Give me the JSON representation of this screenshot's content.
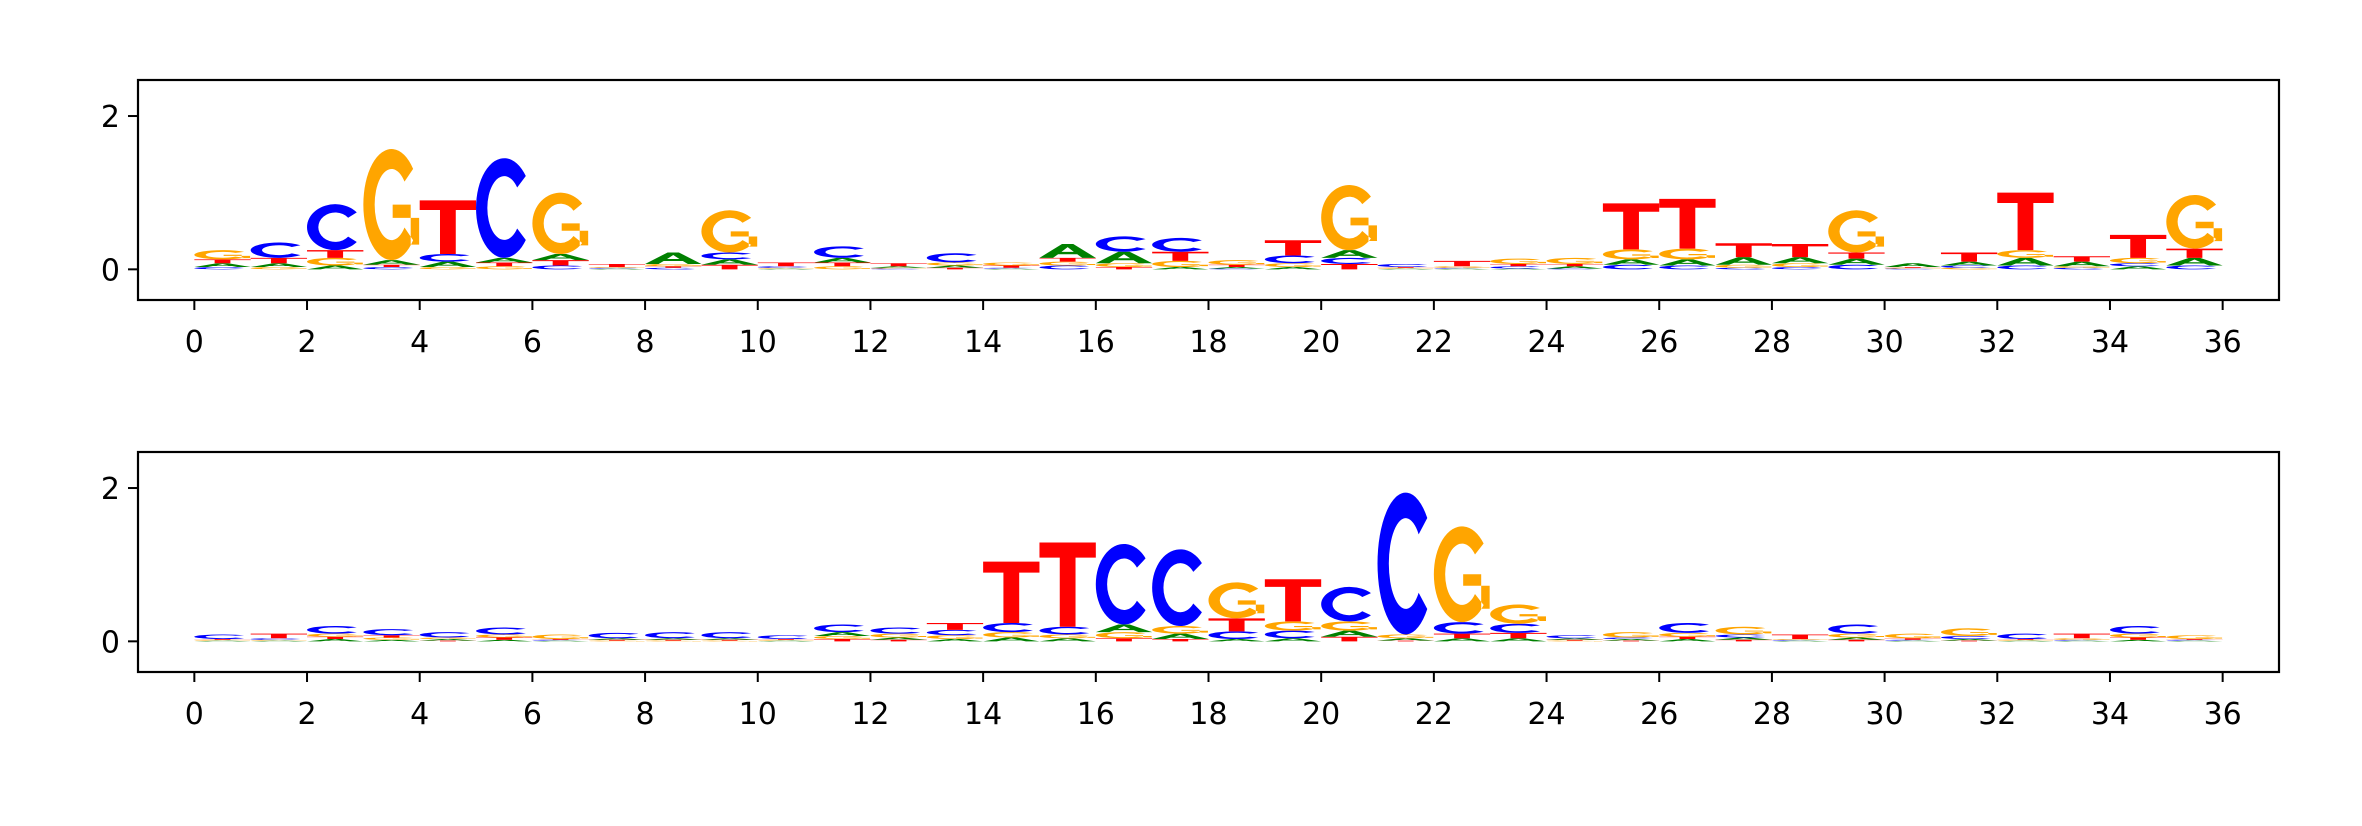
{
  "colors": {
    "A": "#008000",
    "C": "#0000ff",
    "G": "#ffa500",
    "T": "#ff0000"
  },
  "chart_data": [
    {
      "type": "sequence-logo",
      "alphabet": [
        "A",
        "C",
        "G",
        "T"
      ],
      "xlim": [
        -1,
        37
      ],
      "ylim": [
        -0.4,
        2.47
      ],
      "xticks": [
        0,
        2,
        4,
        6,
        8,
        10,
        12,
        14,
        16,
        18,
        20,
        22,
        24,
        26,
        28,
        30,
        32,
        34,
        36
      ],
      "yticks": [
        0,
        2
      ],
      "xlabel": "",
      "ylabel": "",
      "columns": [
        [
          0.05,
          0.03,
          0.12,
          0.05
        ],
        [
          0.05,
          0.2,
          0.03,
          0.07
        ],
        [
          0.05,
          0.6,
          0.1,
          0.1
        ],
        [
          0.06,
          0.03,
          1.45,
          0.03
        ],
        [
          0.07,
          0.1,
          0.03,
          0.7
        ],
        [
          0.06,
          1.3,
          0.04,
          0.05
        ],
        [
          0.08,
          0.05,
          0.8,
          0.07
        ],
        [
          0.01,
          0.01,
          0.01,
          0.04
        ],
        [
          0.15,
          0.02,
          0.03,
          0.02
        ],
        [
          0.07,
          0.09,
          0.55,
          0.06
        ],
        [
          0.01,
          0.02,
          0.01,
          0.05
        ],
        [
          0.06,
          0.15,
          0.04,
          0.05
        ],
        [
          0.02,
          0.01,
          0.01,
          0.04
        ],
        [
          0.03,
          0.12,
          0.04,
          0.02
        ],
        [
          0.01,
          0.01,
          0.04,
          0.03
        ],
        [
          0.18,
          0.05,
          0.05,
          0.05
        ],
        [
          0.15,
          0.2,
          0.05,
          0.03
        ],
        [
          0.03,
          0.18,
          0.08,
          0.12
        ],
        [
          0.02,
          0.01,
          0.06,
          0.03
        ],
        [
          0.03,
          0.1,
          0.05,
          0.2
        ],
        [
          0.1,
          0.08,
          0.85,
          0.07
        ],
        [
          0.01,
          0.04,
          0.01,
          0.01
        ],
        [
          0.01,
          0.01,
          0.02,
          0.07
        ],
        [
          0.01,
          0.03,
          0.07,
          0.03
        ],
        [
          0.03,
          0.01,
          0.08,
          0.03
        ],
        [
          0.07,
          0.06,
          0.13,
          0.6
        ],
        [
          0.08,
          0.05,
          0.14,
          0.65
        ],
        [
          0.1,
          0.02,
          0.04,
          0.18
        ],
        [
          0.08,
          0.03,
          0.05,
          0.17
        ],
        [
          0.08,
          0.06,
          0.55,
          0.08
        ],
        [
          0.05,
          0.01,
          0.01,
          0.01
        ],
        [
          0.05,
          0.03,
          0.02,
          0.12
        ],
        [
          0.1,
          0.05,
          0.1,
          0.75
        ],
        [
          0.06,
          0.02,
          0.02,
          0.07
        ],
        [
          0.04,
          0.04,
          0.07,
          0.3
        ],
        [
          0.1,
          0.05,
          0.7,
          0.12
        ]
      ]
    },
    {
      "type": "sequence-logo",
      "alphabet": [
        "A",
        "C",
        "G",
        "T"
      ],
      "xlim": [
        -1,
        37
      ],
      "ylim": [
        -0.4,
        2.47
      ],
      "xticks": [
        0,
        2,
        4,
        6,
        8,
        10,
        12,
        14,
        16,
        18,
        20,
        22,
        24,
        26,
        28,
        30,
        32,
        34,
        36
      ],
      "yticks": [
        0,
        2
      ],
      "xlabel": "",
      "ylabel": "",
      "columns": [
        [
          0.01,
          0.06,
          0.01,
          0.01
        ],
        [
          0.01,
          0.02,
          0.01,
          0.06
        ],
        [
          0.03,
          0.1,
          0.04,
          0.03
        ],
        [
          0.02,
          0.08,
          0.03,
          0.03
        ],
        [
          0.02,
          0.07,
          0.02,
          0.01
        ],
        [
          0.02,
          0.09,
          0.04,
          0.03
        ],
        [
          0.01,
          0.01,
          0.06,
          0.01
        ],
        [
          0.02,
          0.07,
          0.01,
          0.01
        ],
        [
          0.02,
          0.08,
          0.01,
          0.01
        ],
        [
          0.02,
          0.08,
          0.01,
          0.01
        ],
        [
          0.01,
          0.05,
          0.01,
          0.01
        ],
        [
          0.05,
          0.1,
          0.04,
          0.03
        ],
        [
          0.03,
          0.08,
          0.05,
          0.02
        ],
        [
          0.03,
          0.07,
          0.05,
          0.09
        ],
        [
          0.05,
          0.12,
          0.07,
          0.8
        ],
        [
          0.04,
          0.1,
          0.05,
          1.1
        ],
        [
          0.1,
          1.05,
          0.08,
          0.04
        ],
        [
          0.07,
          1.0,
          0.1,
          0.03
        ],
        [
          0.03,
          0.1,
          0.47,
          0.17
        ],
        [
          0.04,
          0.1,
          0.12,
          0.55
        ],
        [
          0.08,
          0.45,
          0.12,
          0.06
        ],
        [
          0.03,
          1.85,
          0.05,
          0.01
        ],
        [
          0.04,
          0.15,
          1.25,
          0.06
        ],
        [
          0.04,
          0.12,
          0.25,
          0.07
        ],
        [
          0.02,
          0.04,
          0.01,
          0.01
        ],
        [
          0.02,
          0.02,
          0.07,
          0.01
        ],
        [
          0.03,
          0.13,
          0.05,
          0.03
        ],
        [
          0.03,
          0.04,
          0.1,
          0.02
        ],
        [
          0.01,
          0.01,
          0.01,
          0.06
        ],
        [
          0.03,
          0.12,
          0.05,
          0.02
        ],
        [
          0.01,
          0.01,
          0.06,
          0.02
        ],
        [
          0.02,
          0.04,
          0.1,
          0.01
        ],
        [
          0.01,
          0.07,
          0.01,
          0.01
        ],
        [
          0.01,
          0.01,
          0.02,
          0.06
        ],
        [
          0.02,
          0.1,
          0.05,
          0.03
        ],
        [
          0.01,
          0.01,
          0.05,
          0.01
        ]
      ]
    }
  ]
}
